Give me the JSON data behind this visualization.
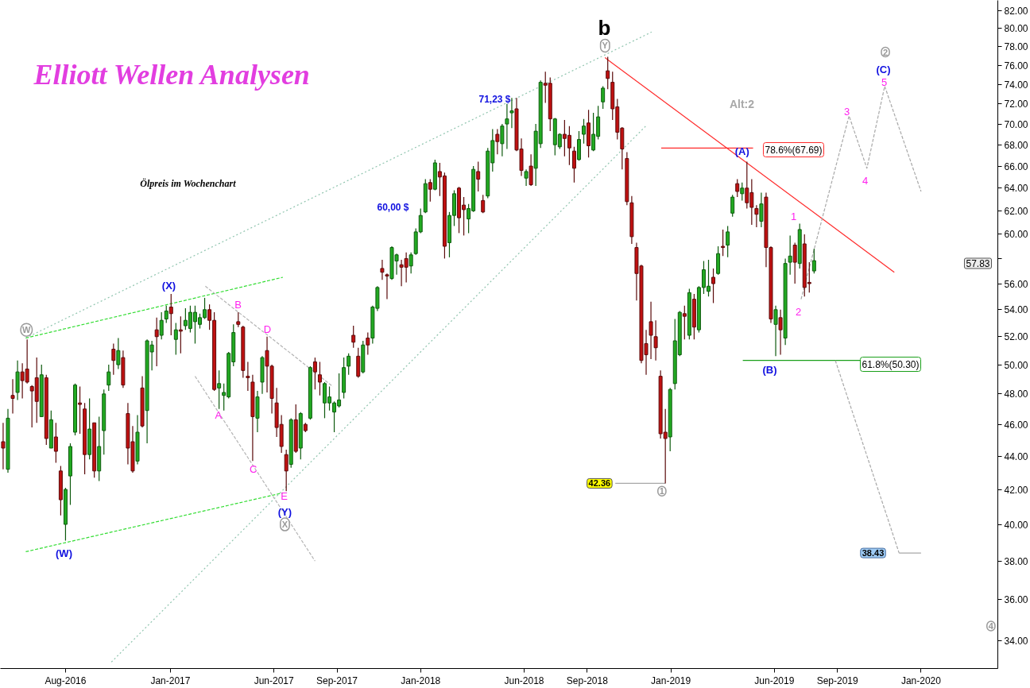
{
  "chart_data": {
    "type": "candlestick",
    "title": "Elliott Wellen Analysen",
    "subtitle": "Ölpreis im Wochenchart",
    "log": "y",
    "grid": false,
    "xlim": [
      "2016-04-28",
      "2020-04-22"
    ],
    "xticks": [
      {
        "value": "2016-08-01",
        "label": "Aug-2016"
      },
      {
        "value": "2017-01-01",
        "label": "Jan-2017"
      },
      {
        "value": "2017-06-01",
        "label": "Jun-2017"
      },
      {
        "value": "2017-09-01",
        "label": "Sep-2017"
      },
      {
        "value": "2018-01-01",
        "label": "Jan-2018"
      },
      {
        "value": "2018-06-01",
        "label": "Jun-2018"
      },
      {
        "value": "2018-09-01",
        "label": "Sep-2018"
      },
      {
        "value": "2019-01-01",
        "label": "Jan-2019"
      },
      {
        "value": "2019-06-01",
        "label": "Jun-2019"
      },
      {
        "value": "2019-09-01",
        "label": "Sep-2019"
      },
      {
        "value": "2020-01-01",
        "label": "Jan-2020"
      }
    ],
    "ylim": [
      32.7,
      83.2
    ],
    "yticks": [
      {
        "value": 34,
        "label": "34.00"
      },
      {
        "value": 36,
        "label": "36.00"
      },
      {
        "value": 38,
        "label": "38.00"
      },
      {
        "value": 40,
        "label": "40.00"
      },
      {
        "value": 42,
        "label": "42.00"
      },
      {
        "value": 44,
        "label": "44.00"
      },
      {
        "value": 46,
        "label": "46.00"
      },
      {
        "value": 48,
        "label": "48.00"
      },
      {
        "value": 50,
        "label": "50.00"
      },
      {
        "value": 52,
        "label": "52.00"
      },
      {
        "value": 54,
        "label": "54.00"
      },
      {
        "value": 56,
        "label": "56.00"
      },
      {
        "value": 58,
        "label": null
      },
      {
        "value": 60,
        "label": "60.00"
      },
      {
        "value": 62,
        "label": "62.00"
      },
      {
        "value": 64,
        "label": "64.00"
      },
      {
        "value": 66,
        "label": "66.00"
      },
      {
        "value": 68,
        "label": "68.00"
      },
      {
        "value": 70,
        "label": "70.00"
      },
      {
        "value": 72,
        "label": "72.00"
      },
      {
        "value": 74,
        "label": "74.00"
      },
      {
        "value": 76,
        "label": "76.00"
      },
      {
        "value": 78,
        "label": "78.00"
      },
      {
        "value": 80,
        "label": "80.00"
      },
      {
        "value": 82,
        "label": "82.00"
      }
    ],
    "x": [
      "2016-05-02",
      "2016-05-09",
      "2016-05-16",
      "2016-05-23",
      "2016-05-30",
      "2016-06-06",
      "2016-06-13",
      "2016-06-20",
      "2016-06-27",
      "2016-07-04",
      "2016-07-11",
      "2016-07-18",
      "2016-07-25",
      "2016-08-01",
      "2016-08-08",
      "2016-08-15",
      "2016-08-22",
      "2016-08-29",
      "2016-09-05",
      "2016-09-12",
      "2016-09-19",
      "2016-09-26",
      "2016-10-03",
      "2016-10-10",
      "2016-10-17",
      "2016-10-24",
      "2016-10-31",
      "2016-11-07",
      "2016-11-14",
      "2016-11-21",
      "2016-11-28",
      "2016-12-05",
      "2016-12-12",
      "2016-12-19",
      "2016-12-26",
      "2017-01-02",
      "2017-01-09",
      "2017-01-16",
      "2017-01-23",
      "2017-01-30",
      "2017-02-06",
      "2017-02-13",
      "2017-02-20",
      "2017-02-27",
      "2017-03-06",
      "2017-03-13",
      "2017-03-20",
      "2017-03-27",
      "2017-04-03",
      "2017-04-10",
      "2017-04-17",
      "2017-04-24",
      "2017-05-01",
      "2017-05-08",
      "2017-05-15",
      "2017-05-22",
      "2017-05-29",
      "2017-06-05",
      "2017-06-12",
      "2017-06-19",
      "2017-06-26",
      "2017-07-03",
      "2017-07-10",
      "2017-07-17",
      "2017-07-24",
      "2017-07-31",
      "2017-08-07",
      "2017-08-14",
      "2017-08-21",
      "2017-08-28",
      "2017-09-04",
      "2017-09-11",
      "2017-09-18",
      "2017-09-25",
      "2017-10-02",
      "2017-10-09",
      "2017-10-16",
      "2017-10-23",
      "2017-10-30",
      "2017-11-06",
      "2017-11-13",
      "2017-11-20",
      "2017-11-27",
      "2017-12-04",
      "2017-12-11",
      "2017-12-18",
      "2017-12-25",
      "2018-01-01",
      "2018-01-08",
      "2018-01-15",
      "2018-01-22",
      "2018-01-29",
      "2018-02-05",
      "2018-02-12",
      "2018-02-19",
      "2018-02-26",
      "2018-03-05",
      "2018-03-12",
      "2018-03-19",
      "2018-03-26",
      "2018-04-02",
      "2018-04-09",
      "2018-04-16",
      "2018-04-23",
      "2018-04-30",
      "2018-05-07",
      "2018-05-14",
      "2018-05-21",
      "2018-05-28",
      "2018-06-04",
      "2018-06-11",
      "2018-06-18",
      "2018-06-25",
      "2018-07-02",
      "2018-07-09",
      "2018-07-16",
      "2018-07-23",
      "2018-07-30",
      "2018-08-06",
      "2018-08-13",
      "2018-08-20",
      "2018-08-27",
      "2018-09-03",
      "2018-09-10",
      "2018-09-17",
      "2018-09-24",
      "2018-10-01",
      "2018-10-08",
      "2018-10-15",
      "2018-10-22",
      "2018-10-29",
      "2018-11-05",
      "2018-11-12",
      "2018-11-19",
      "2018-11-26",
      "2018-12-03",
      "2018-12-10",
      "2018-12-17",
      "2018-12-24",
      "2018-12-31",
      "2019-01-07",
      "2019-01-14",
      "2019-01-21",
      "2019-01-28",
      "2019-02-04",
      "2019-02-11",
      "2019-02-18",
      "2019-02-25",
      "2019-03-04",
      "2019-03-11",
      "2019-03-18",
      "2019-03-25",
      "2019-04-01",
      "2019-04-08",
      "2019-04-15",
      "2019-04-22",
      "2019-04-29",
      "2019-05-06",
      "2019-05-13",
      "2019-05-20",
      "2019-05-27",
      "2019-06-03",
      "2019-06-10",
      "2019-06-17",
      "2019-06-24",
      "2019-07-01",
      "2019-07-08",
      "2019-07-15",
      "2019-07-22",
      "2019-07-29"
    ],
    "ohlc": [
      [
        44.9,
        46.1,
        43.2,
        44.5
      ],
      [
        43.2,
        47.0,
        43.0,
        46.4
      ],
      [
        47.9,
        49.0,
        46.7,
        47.7
      ],
      [
        48.1,
        50.3,
        47.6,
        49.5
      ],
      [
        49.5,
        50.1,
        47.7,
        48.9
      ],
      [
        49.7,
        51.8,
        48.7,
        48.8
      ],
      [
        48.5,
        48.6,
        45.8,
        48.2
      ],
      [
        49.1,
        50.5,
        46.1,
        47.5
      ],
      [
        46.5,
        50.0,
        46.5,
        49.3
      ],
      [
        49.1,
        49.3,
        44.7,
        45.1
      ],
      [
        44.5,
        46.9,
        44.5,
        46.3
      ],
      [
        45.2,
        46.1,
        43.6,
        44.3
      ],
      [
        43.1,
        43.4,
        40.5,
        41.4
      ],
      [
        40.0,
        42.1,
        39.1,
        42.0
      ],
      [
        42.8,
        44.8,
        41.1,
        44.6
      ],
      [
        45.5,
        48.7,
        45.3,
        48.6
      ],
      [
        47.4,
        48.5,
        45.4,
        47.3
      ],
      [
        47.0,
        47.4,
        42.9,
        44.1
      ],
      [
        44.1,
        47.7,
        43.8,
        45.7
      ],
      [
        46.1,
        46.1,
        42.7,
        43.1
      ],
      [
        43.1,
        46.5,
        42.5,
        44.6
      ],
      [
        45.6,
        48.3,
        44.1,
        48.0
      ],
      [
        48.6,
        50.0,
        48.2,
        49.5
      ],
      [
        51.1,
        51.5,
        49.3,
        50.3
      ],
      [
        50.0,
        51.9,
        49.7,
        51.0
      ],
      [
        50.5,
        51.0,
        48.4,
        48.6
      ],
      [
        46.7,
        47.4,
        43.5,
        44.5
      ],
      [
        44.9,
        45.9,
        43.0,
        43.1
      ],
      [
        43.7,
        46.6,
        43.5,
        45.5
      ],
      [
        48.4,
        49.2,
        45.8,
        45.9
      ],
      [
        46.9,
        51.8,
        44.8,
        51.7
      ],
      [
        50.9,
        51.7,
        49.6,
        51.4
      ],
      [
        52.5,
        53.4,
        49.9,
        52.0
      ],
      [
        52.1,
        53.8,
        51.8,
        53.2
      ],
      [
        53.3,
        54.3,
        53.0,
        53.9
      ],
      [
        54.2,
        55.2,
        52.1,
        53.7
      ],
      [
        51.8,
        53.0,
        50.7,
        52.5
      ],
      [
        52.5,
        53.5,
        50.8,
        52.4
      ],
      [
        52.8,
        54.1,
        52.5,
        53.2
      ],
      [
        52.6,
        54.3,
        52.3,
        53.8
      ],
      [
        53.1,
        54.3,
        51.5,
        53.8
      ],
      [
        52.9,
        53.7,
        52.6,
        53.4
      ],
      [
        53.4,
        54.9,
        53.3,
        54.0
      ],
      [
        54.0,
        54.4,
        52.5,
        53.2
      ],
      [
        53.2,
        53.8,
        48.2,
        48.3
      ],
      [
        48.4,
        49.6,
        47.0,
        48.7
      ],
      [
        47.9,
        48.7,
        46.9,
        48.1
      ],
      [
        47.8,
        50.9,
        47.7,
        50.8
      ],
      [
        50.2,
        52.9,
        49.9,
        52.3
      ],
      [
        53.1,
        53.8,
        52.7,
        52.9
      ],
      [
        52.7,
        52.8,
        49.1,
        49.6
      ],
      [
        49.2,
        50.2,
        48.2,
        49.1
      ],
      [
        48.8,
        49.3,
        43.7,
        46.5
      ],
      [
        46.4,
        48.2,
        45.5,
        47.8
      ],
      [
        48.8,
        50.6,
        48.0,
        50.5
      ],
      [
        51.0,
        52.0,
        48.1,
        49.9
      ],
      [
        49.9,
        50.0,
        46.7,
        47.7
      ],
      [
        47.4,
        48.4,
        45.2,
        45.8
      ],
      [
        46.0,
        46.6,
        44.2,
        44.6
      ],
      [
        44.1,
        44.4,
        41.9,
        43.1
      ],
      [
        43.5,
        46.4,
        43.3,
        46.3
      ],
      [
        46.3,
        47.3,
        44.2,
        44.3
      ],
      [
        44.5,
        46.8,
        43.8,
        46.7
      ],
      [
        46.0,
        46.1,
        45.5,
        45.6
      ],
      [
        46.4,
        49.9,
        46.3,
        49.8
      ],
      [
        50.2,
        50.5,
        48.3,
        49.5
      ],
      [
        49.3,
        50.2,
        47.9,
        48.8
      ],
      [
        47.4,
        48.8,
        46.4,
        48.7
      ],
      [
        47.4,
        48.5,
        46.9,
        47.8
      ],
      [
        46.8,
        47.5,
        45.5,
        47.4
      ],
      [
        47.2,
        49.4,
        47.1,
        47.6
      ],
      [
        48.1,
        50.5,
        47.7,
        49.8
      ],
      [
        49.9,
        50.8,
        49.3,
        50.6
      ],
      [
        52.1,
        52.8,
        51.2,
        51.6
      ],
      [
        50.6,
        51.2,
        49.1,
        49.2
      ],
      [
        49.5,
        51.7,
        49.4,
        51.4
      ],
      [
        51.9,
        52.3,
        50.7,
        51.4
      ],
      [
        51.9,
        54.3,
        51.5,
        54.2
      ],
      [
        54.1,
        55.8,
        53.9,
        55.7
      ],
      [
        57.2,
        57.9,
        56.3,
        56.9
      ],
      [
        56.7,
        56.8,
        54.8,
        56.6
      ],
      [
        56.4,
        59.0,
        56.3,
        58.9
      ],
      [
        57.8,
        58.4,
        56.7,
        58.3
      ],
      [
        57.5,
        57.9,
        55.8,
        57.3
      ],
      [
        58.0,
        58.5,
        56.1,
        57.3
      ],
      [
        57.4,
        58.5,
        56.8,
        58.3
      ],
      [
        58.4,
        60.5,
        58.3,
        60.2
      ],
      [
        60.2,
        62.2,
        60.1,
        61.6
      ],
      [
        61.9,
        64.8,
        61.8,
        64.4
      ],
      [
        64.5,
        64.8,
        62.8,
        63.9
      ],
      [
        63.9,
        66.6,
        63.8,
        66.3
      ],
      [
        65.5,
        66.3,
        63.3,
        65.0
      ],
      [
        65.1,
        65.4,
        58.0,
        59.0
      ],
      [
        59.3,
        61.9,
        58.1,
        61.6
      ],
      [
        61.6,
        63.8,
        60.7,
        63.5
      ],
      [
        64.0,
        64.1,
        60.1,
        61.4
      ],
      [
        62.5,
        63.2,
        59.9,
        62.1
      ],
      [
        61.3,
        62.6,
        60.1,
        62.2
      ],
      [
        62.0,
        66.0,
        61.9,
        65.7
      ],
      [
        65.5,
        66.4,
        63.7,
        64.8
      ],
      [
        62.9,
        63.4,
        61.8,
        61.9
      ],
      [
        63.3,
        67.7,
        63.1,
        67.4
      ],
      [
        66.3,
        69.5,
        65.5,
        68.4
      ],
      [
        69.0,
        69.5,
        67.1,
        68.3
      ],
      [
        68.1,
        70.0,
        66.9,
        69.8
      ],
      [
        70.0,
        72.0,
        67.6,
        70.5
      ],
      [
        71.1,
        72.6,
        69.6,
        71.3
      ],
      [
        71.5,
        72.6,
        67.4,
        67.5
      ],
      [
        67.6,
        68.6,
        65.1,
        65.6
      ],
      [
        64.9,
        65.7,
        64.2,
        65.5
      ],
      [
        66.0,
        67.1,
        64.2,
        64.3
      ],
      [
        65.8,
        70.0,
        64.2,
        69.3
      ],
      [
        68.1,
        74.4,
        67.7,
        74.2
      ],
      [
        74.1,
        75.3,
        72.1,
        73.9
      ],
      [
        74.1,
        74.7,
        69.3,
        70.5
      ],
      [
        68.0,
        70.6,
        67.0,
        70.5
      ],
      [
        67.8,
        69.1,
        67.6,
        69.0
      ],
      [
        69.0,
        70.4,
        66.9,
        68.6
      ],
      [
        68.9,
        69.8,
        66.1,
        67.7
      ],
      [
        67.4,
        67.8,
        64.5,
        65.8
      ],
      [
        66.6,
        69.3,
        66.5,
        68.5
      ],
      [
        69.0,
        70.5,
        68.1,
        69.8
      ],
      [
        70.1,
        71.4,
        66.8,
        67.9
      ],
      [
        67.5,
        71.1,
        67.4,
        69.0
      ],
      [
        68.8,
        71.8,
        68.5,
        70.7
      ],
      [
        72.2,
        73.8,
        71.5,
        73.6
      ],
      [
        75.4,
        76.9,
        73.5,
        74.6
      ],
      [
        74.2,
        75.3,
        70.4,
        71.5
      ],
      [
        71.7,
        72.5,
        68.5,
        69.2
      ],
      [
        69.6,
        69.7,
        65.7,
        67.6
      ],
      [
        66.7,
        67.3,
        62.5,
        62.8
      ],
      [
        62.7,
        63.3,
        59.2,
        59.8
      ],
      [
        58.9,
        59.3,
        54.7,
        56.8
      ],
      [
        57.4,
        57.5,
        50.1,
        50.3
      ],
      [
        51.5,
        52.5,
        49.3,
        50.7
      ],
      [
        53.1,
        54.6,
        50.4,
        52.1
      ],
      [
        52.0,
        53.2,
        50.3,
        51.2
      ],
      [
        49.2,
        49.6,
        45.1,
        45.4
      ],
      [
        45.5,
        47.0,
        42.36,
        45.1
      ],
      [
        45.2,
        48.4,
        44.3,
        48.3
      ],
      [
        48.7,
        53.3,
        48.3,
        51.7
      ],
      [
        50.7,
        53.9,
        50.6,
        53.8
      ],
      [
        53.7,
        54.3,
        51.8,
        53.5
      ],
      [
        52.1,
        55.6,
        51.8,
        55.3
      ],
      [
        54.8,
        55.2,
        51.8,
        52.7
      ],
      [
        52.5,
        55.8,
        52.3,
        55.7
      ],
      [
        55.7,
        57.8,
        55.2,
        57.1
      ],
      [
        55.4,
        57.9,
        55.0,
        55.8
      ],
      [
        56.5,
        57.2,
        54.5,
        56.0
      ],
      [
        56.8,
        59.0,
        56.7,
        58.4
      ],
      [
        59.0,
        60.4,
        58.2,
        58.9
      ],
      [
        59.1,
        60.7,
        58.1,
        60.2
      ],
      [
        61.8,
        63.4,
        61.5,
        63.2
      ],
      [
        64.4,
        64.8,
        63.2,
        63.7
      ],
      [
        63.5,
        64.5,
        62.9,
        64.0
      ],
      [
        64.0,
        66.4,
        62.2,
        62.7
      ],
      [
        63.6,
        64.8,
        60.8,
        62.3
      ],
      [
        62.2,
        62.5,
        60.6,
        61.7
      ],
      [
        61.1,
        63.6,
        60.6,
        62.6
      ],
      [
        63.2,
        63.6,
        57.3,
        58.9
      ],
      [
        58.9,
        59.0,
        53.0,
        53.3
      ],
      [
        52.9,
        54.3,
        50.6,
        54.0
      ],
      [
        53.4,
        54.0,
        50.7,
        52.5
      ],
      [
        51.9,
        58.0,
        51.4,
        57.6
      ],
      [
        57.7,
        59.9,
        56.7,
        58.2
      ],
      [
        59.1,
        59.3,
        56.0,
        57.7
      ],
      [
        57.6,
        60.9,
        57.2,
        60.4
      ],
      [
        59.2,
        60.0,
        55.0,
        55.7
      ],
      [
        56.1,
        57.7,
        55.3,
        56.0
      ],
      [
        57.0,
        58.8,
        56.8,
        57.83
      ]
    ],
    "series": [
      {
        "type": "line",
        "x": [
          "2016-06-04",
          "2018-12-04"
        ],
        "values": [
          51.9,
          79.6
        ],
        "color": "#8fc4ae",
        "line_style": "dotted"
      },
      {
        "type": "line",
        "x": [
          "2016-10-07",
          "2018-11-27"
        ],
        "values": [
          33.0,
          69.9
        ],
        "color": "#8fc4ae",
        "line_style": "dotted"
      },
      {
        "type": "line",
        "x": [
          "2016-06-04",
          "2017-06-14"
        ],
        "values": [
          51.9,
          56.5
        ],
        "color": "#33dd33",
        "line_style": "dashed"
      },
      {
        "type": "line",
        "x": [
          "2016-06-04",
          "2017-06-14"
        ],
        "values": [
          38.5,
          41.8
        ],
        "color": "#33dd33",
        "line_style": "dashed"
      },
      {
        "type": "line",
        "x": [
          "2017-02-21",
          "2017-08-26"
        ],
        "values": [
          55.8,
          48.5
        ],
        "color": "#b4b4b4",
        "line_style": "dashed"
      },
      {
        "type": "line",
        "x": [
          "2017-02-06",
          "2017-07-31"
        ],
        "values": [
          49.2,
          38.0
        ],
        "color": "#b4b4b4",
        "line_style": "dashed"
      },
      {
        "type": "line",
        "x": [
          "2018-09-27",
          "2019-11-23"
        ],
        "values": [
          76.8,
          56.9
        ],
        "color": "#ff2a2a",
        "line_style": "solid"
      },
      {
        "type": "line",
        "x": [
          "2018-12-18",
          "2019-05-01"
        ],
        "values": [
          67.69,
          67.69
        ],
        "color": "#ff2a2a",
        "line_style": "solid"
      },
      {
        "type": "line",
        "x": [
          "2019-04-16",
          "2019-10-05"
        ],
        "values": [
          50.3,
          50.3
        ],
        "color": "#1aa01a",
        "line_style": "solid"
      },
      {
        "type": "line",
        "x": [
          "2018-10-12",
          "2018-12-24"
        ],
        "values": [
          42.36,
          42.36
        ],
        "color": "#a8a8a8",
        "line_style": "solid"
      },
      {
        "type": "line",
        "x": [
          "2019-07-10",
          "2019-09-18",
          "2019-10-14",
          "2019-11-09",
          "2020-01-01"
        ],
        "values": [
          54.8,
          70.8,
          65.8,
          73.8,
          63.7
        ],
        "color": "#a8a8a8",
        "line_style": "dashed"
      },
      {
        "type": "line",
        "x": [
          "2019-08-29",
          "2019-11-30"
        ],
        "values": [
          50.3,
          38.43
        ],
        "color": "#a8a8a8",
        "line_style": "dashed"
      },
      {
        "type": "line",
        "x": [
          "2019-11-30",
          "2020-01-01"
        ],
        "values": [
          38.43,
          38.43
        ],
        "color": "#a8a8a8",
        "line_style": "solid"
      }
    ],
    "annotations": [
      "b",
      {
        "text": "Y",
        "x": "2018-09-27",
        "y": 78.1
      },
      {
        "text": "W",
        "x": "2016-06-05",
        "y": 52.5
      },
      "(X)",
      "(W)",
      "B",
      "D",
      {
        "text": "A",
        "x": "2017-03-12",
        "y": 46.6
      },
      {
        "text": "C",
        "x": "2017-05-02",
        "y": 43.2
      },
      {
        "text": "E",
        "x": "2017-06-16",
        "y": 41.6
      },
      {
        "text": "(Y)",
        "x": "2017-06-17",
        "y": 40.7
      },
      {
        "text": "X",
        "x": "2017-06-17",
        "y": 40.0
      },
      "71,23 $",
      "60,00 $",
      "Alt:2",
      {
        "text": "(A)",
        "x": "2019-04-15",
        "y": 67.4
      },
      "(B)",
      "1",
      "2",
      "3",
      "4",
      "5",
      "(C)",
      {
        "text": "2",
        "x": "2019-11-10",
        "y": 77.4
      },
      {
        "text": "1",
        "x": "2018-12-19",
        "y": 41.9
      },
      {
        "text": "4",
        "x": "2020-04-12",
        "y": 34.7
      },
      {
        "text": "42.36",
        "x": "2018-09-19",
        "y": 42.36
      },
      {
        "text": "38.43",
        "x": "2019-10-23",
        "y": 38.43
      },
      "78.6%(67.69)",
      "61.8%(50.30)",
      "57.83"
    ]
  }
}
